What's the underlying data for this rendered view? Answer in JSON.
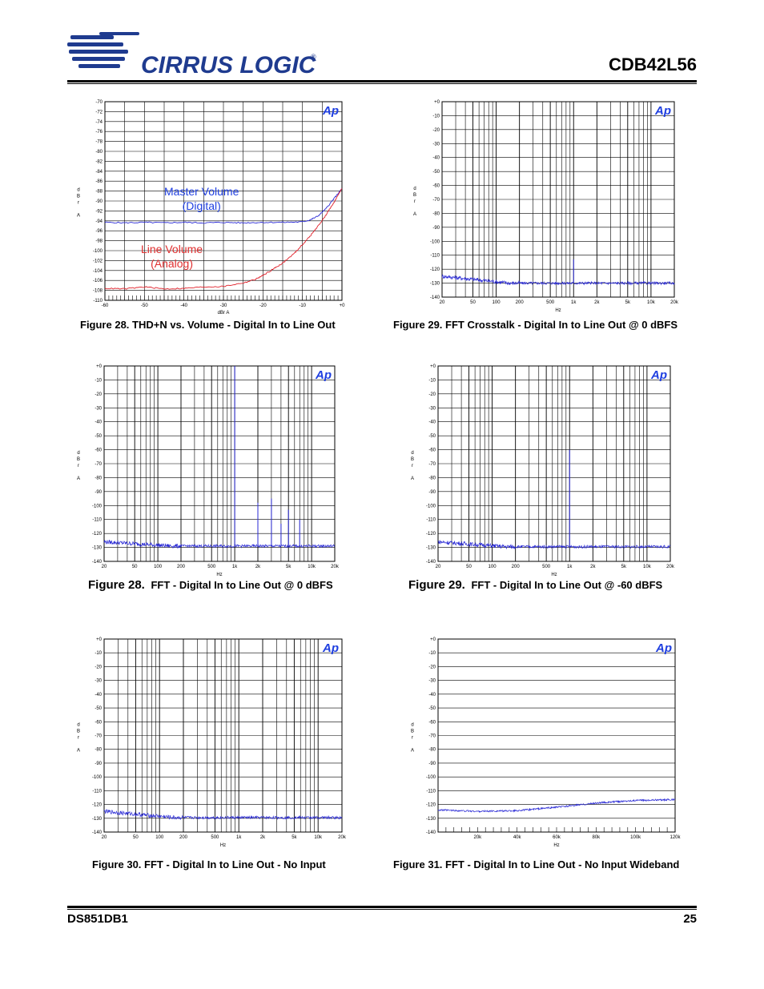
{
  "header": {
    "brand": "CIRRUS LOGIC",
    "registered": "®",
    "product": "CDB42L56"
  },
  "footer": {
    "doc_id": "DS851DB1",
    "page": "25"
  },
  "colors": {
    "blue_trace": "#2a2ad6",
    "red_trace": "#e0202a",
    "annot_blue": "#1f3fe0",
    "annot_red": "#e03030",
    "logo_blue": "#1f3b8f"
  },
  "chart_data": [
    {
      "id": "thd-volume",
      "type": "line",
      "title": "",
      "xlabel": "dBr A",
      "ylabel": [
        "d",
        "B",
        "r",
        "",
        "A"
      ],
      "xlim": [
        -60,
        0
      ],
      "ylim": [
        -110,
        -70
      ],
      "x_ticks": [
        -60,
        -50,
        -40,
        -30,
        -20,
        -10,
        0
      ],
      "x_tick_labels": [
        "-60",
        "-50",
        "-40",
        "-30",
        "-20",
        "-10",
        "+0"
      ],
      "y_ticks": [
        -70,
        -72,
        -74,
        -76,
        -78,
        -80,
        -82,
        -84,
        -86,
        -88,
        -90,
        -92,
        -94,
        -96,
        -98,
        -100,
        -102,
        -104,
        -106,
        -108,
        -110
      ],
      "y_tick_labels": [
        "-70",
        "-72",
        "-74",
        "-76",
        "-78",
        "-80",
        "-82",
        "-84",
        "-86",
        "-88",
        "-90",
        "-92",
        "-94",
        "-96",
        "-98",
        "-100",
        "-102",
        "-104",
        "-106",
        "-108",
        "-110"
      ],
      "annotations": [
        {
          "lines": [
            "Master Volume",
            "(Digital)"
          ],
          "color": "#1f3fe0"
        },
        {
          "lines": [
            "Line Volume",
            "(Analog)"
          ],
          "color": "#e03030"
        }
      ],
      "series": [
        {
          "name": "Master Volume (Digital)",
          "color": "#2a2ad6",
          "x": [
            -60,
            -55,
            -50,
            -45,
            -40,
            -35,
            -30,
            -25,
            -20,
            -15,
            -10,
            -8,
            -6,
            -4,
            -2,
            0
          ],
          "y": [
            -94.3,
            -94.4,
            -94.3,
            -94.4,
            -94.3,
            -94.4,
            -94.3,
            -94.4,
            -94.3,
            -94.3,
            -94.2,
            -93.8,
            -93,
            -91.5,
            -89.5,
            -87.5
          ]
        },
        {
          "name": "Line Volume (Analog)",
          "color": "#e0202a",
          "x": [
            -60,
            -55,
            -50,
            -45,
            -40,
            -35,
            -30,
            -25,
            -22,
            -20,
            -17,
            -15,
            -12,
            -10,
            -8,
            -6,
            -4,
            -2,
            0
          ],
          "y": [
            -107.6,
            -107.7,
            -107.3,
            -107.7,
            -107.6,
            -107.3,
            -107.2,
            -106.5,
            -105.8,
            -105,
            -103.5,
            -102.5,
            -100.5,
            -98.8,
            -97,
            -95,
            -92.8,
            -90.2,
            -87.5
          ]
        }
      ]
    },
    {
      "id": "fft-crosstalk",
      "type": "line",
      "xlabel": "Hz",
      "ylabel": [
        "d",
        "B",
        "r",
        "",
        "A"
      ],
      "xscale": "log",
      "xlim": [
        20,
        20000
      ],
      "ylim": [
        -140,
        0
      ],
      "x_tick_labels": [
        "20",
        "50",
        "100",
        "200",
        "500",
        "1k",
        "2k",
        "5k",
        "10k",
        "20k"
      ],
      "y_tick_labels": [
        "+0",
        "-10",
        "-20",
        "-30",
        "-40",
        "-50",
        "-60",
        "-70",
        "-80",
        "-90",
        "-100",
        "-110",
        "-120",
        "-130",
        "-140"
      ],
      "series": [
        {
          "name": "crosstalk",
          "color": "#2a2ad6",
          "noise_floor": -130,
          "low_freq_floor": -125,
          "spikes": [
            {
              "f": 1000,
              "db": -113
            }
          ]
        }
      ]
    },
    {
      "id": "fft-0dbfs",
      "type": "line",
      "xlabel": "Hz",
      "ylabel": [
        "d",
        "B",
        "r",
        "",
        "A"
      ],
      "xscale": "log",
      "xlim": [
        20,
        20000
      ],
      "ylim": [
        -140,
        0
      ],
      "x_tick_labels": [
        "20",
        "50",
        "100",
        "200",
        "500",
        "1k",
        "2k",
        "5k",
        "10k",
        "20k"
      ],
      "y_tick_labels": [
        "+0",
        "-10",
        "-20",
        "-30",
        "-40",
        "-50",
        "-60",
        "-70",
        "-80",
        "-90",
        "-100",
        "-110",
        "-120",
        "-130",
        "-140"
      ],
      "series": [
        {
          "name": "fft",
          "color": "#2a2ad6",
          "noise_floor": -129,
          "low_freq_floor": -126,
          "spikes": [
            {
              "f": 1000,
              "db": 0
            },
            {
              "f": 2000,
              "db": -98
            },
            {
              "f": 3000,
              "db": -95
            },
            {
              "f": 4000,
              "db": -113
            },
            {
              "f": 5000,
              "db": -103
            },
            {
              "f": 7000,
              "db": -110
            }
          ]
        }
      ]
    },
    {
      "id": "fft-60dbfs",
      "type": "line",
      "xlabel": "Hz",
      "ylabel": [
        "d",
        "B",
        "r",
        "",
        "A"
      ],
      "xscale": "log",
      "xlim": [
        20,
        20000
      ],
      "ylim": [
        -140,
        0
      ],
      "x_tick_labels": [
        "20",
        "50",
        "100",
        "200",
        "500",
        "1k",
        "2k",
        "5k",
        "10k",
        "20k"
      ],
      "y_tick_labels": [
        "+0",
        "-10",
        "-20",
        "-30",
        "-40",
        "-50",
        "-60",
        "-70",
        "-80",
        "-90",
        "-100",
        "-110",
        "-120",
        "-130",
        "-140"
      ],
      "series": [
        {
          "name": "fft",
          "color": "#2a2ad6",
          "noise_floor": -129.5,
          "low_freq_floor": -126,
          "spikes": [
            {
              "f": 1000,
              "db": -60
            }
          ]
        }
      ]
    },
    {
      "id": "fft-noinput",
      "type": "line",
      "xlabel": "Hz",
      "ylabel": [
        "d",
        "B",
        "r",
        "",
        "A"
      ],
      "xscale": "log",
      "xlim": [
        20,
        20000
      ],
      "ylim": [
        -140,
        0
      ],
      "x_tick_labels": [
        "20",
        "50",
        "100",
        "200",
        "500",
        "1k",
        "2k",
        "5k",
        "10k",
        "20k"
      ],
      "y_tick_labels": [
        "+0",
        "-10",
        "-20",
        "-30",
        "-40",
        "-50",
        "-60",
        "-70",
        "-80",
        "-90",
        "-100",
        "-110",
        "-120",
        "-130",
        "-140"
      ],
      "series": [
        {
          "name": "fft",
          "color": "#2a2ad6",
          "noise_floor": -129.5,
          "low_freq_floor": -125,
          "spikes": []
        }
      ]
    },
    {
      "id": "fft-noinput-wide",
      "type": "line",
      "xlabel": "Hz",
      "ylabel": [
        "d",
        "B",
        "r",
        "",
        "A"
      ],
      "xscale": "linear",
      "xlim": [
        0,
        120000
      ],
      "ylim": [
        -140,
        0
      ],
      "x_tick_labels": [
        "20k",
        "40k",
        "60k",
        "80k",
        "100k",
        "120k"
      ],
      "x_tick_values": [
        20000,
        40000,
        60000,
        80000,
        100000,
        120000
      ],
      "y_tick_labels": [
        "+0",
        "-10",
        "-20",
        "-30",
        "-40",
        "-50",
        "-60",
        "-70",
        "-80",
        "-90",
        "-100",
        "-110",
        "-120",
        "-130",
        "-140"
      ],
      "series": [
        {
          "name": "fft",
          "color": "#2a2ad6",
          "x": [
            0,
            20000,
            40000,
            60000,
            80000,
            100000,
            120000
          ],
          "y": [
            -124,
            -125,
            -124.5,
            -122,
            -119,
            -117,
            -116.5
          ]
        }
      ]
    }
  ],
  "captions": {
    "fig28a": "Figure 28.  THD+N vs. Volume - Digital In to Line Out",
    "fig29a": "Figure 29.  FFT Crosstalk - Digital In to Line Out @ 0 dBFS",
    "fig28b_num": "Figure 28.",
    "fig28b_text": "FFT - Digital In to Line Out @ 0 dBFS",
    "fig29b_num": "Figure 29.",
    "fig29b_text": "FFT - Digital In to Line Out @ -60 dBFS",
    "fig30": "Figure 30.  FFT - Digital In to Line Out - No Input",
    "fig31": "Figure 31.  FFT - Digital In to Line Out - No Input Wideband"
  },
  "ap_mark": "Ap"
}
